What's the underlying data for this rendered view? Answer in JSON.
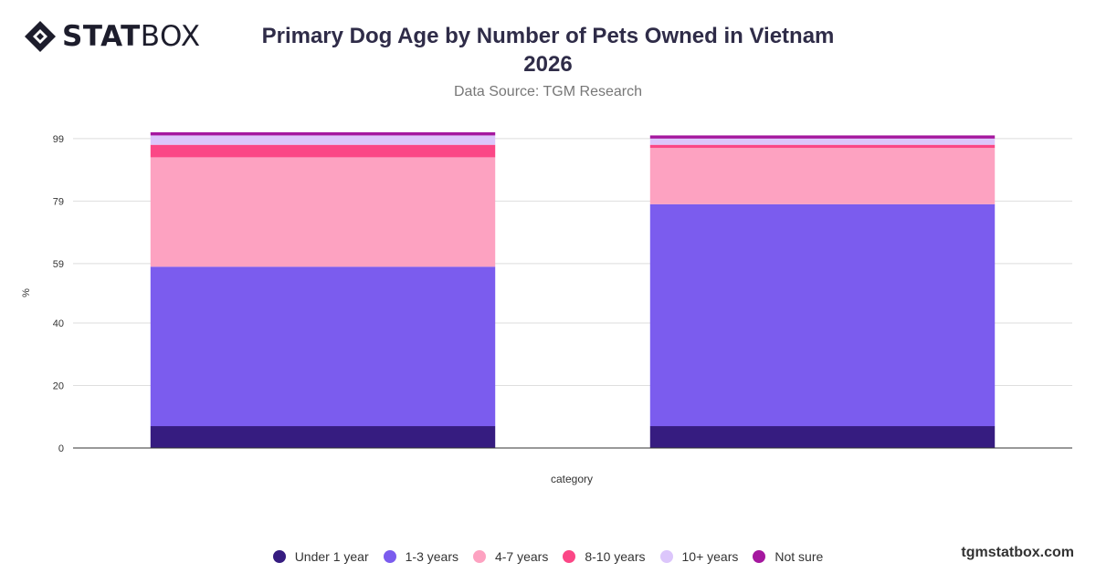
{
  "brand": {
    "logo_bold": "STAT",
    "logo_light": "BOX",
    "website": "tgmstatbox.com"
  },
  "chart_data": {
    "type": "bar",
    "stacked": true,
    "title": "Primary Dog Age by Number of Pets Owned in Vietnam 2026",
    "title_line1": "Primary Dog Age by Number of Pets Owned in Vietnam",
    "title_line2": "2026",
    "subtitle": "Data Source: TGM Research",
    "xlabel": "category",
    "ylabel": "%",
    "ylim": [
      0,
      101
    ],
    "yticks": [
      0,
      20,
      40,
      59,
      79,
      99
    ],
    "grid": true,
    "legend_position": "bottom",
    "categories": [
      "",
      ""
    ],
    "series": [
      {
        "name": "Under 1 year",
        "color": "#361c80",
        "values": [
          7,
          7
        ]
      },
      {
        "name": "1-3 years",
        "color": "#7b5cee",
        "values": [
          51,
          71
        ]
      },
      {
        "name": "4-7 years",
        "color": "#fda2c1",
        "values": [
          35,
          18
        ]
      },
      {
        "name": "8-10 years",
        "color": "#fb4786",
        "values": [
          4,
          1
        ]
      },
      {
        "name": "10+ years",
        "color": "#dcc6fb",
        "values": [
          3,
          2
        ]
      },
      {
        "name": "Not sure",
        "color": "#a5189f",
        "values": [
          1,
          1
        ]
      }
    ]
  }
}
